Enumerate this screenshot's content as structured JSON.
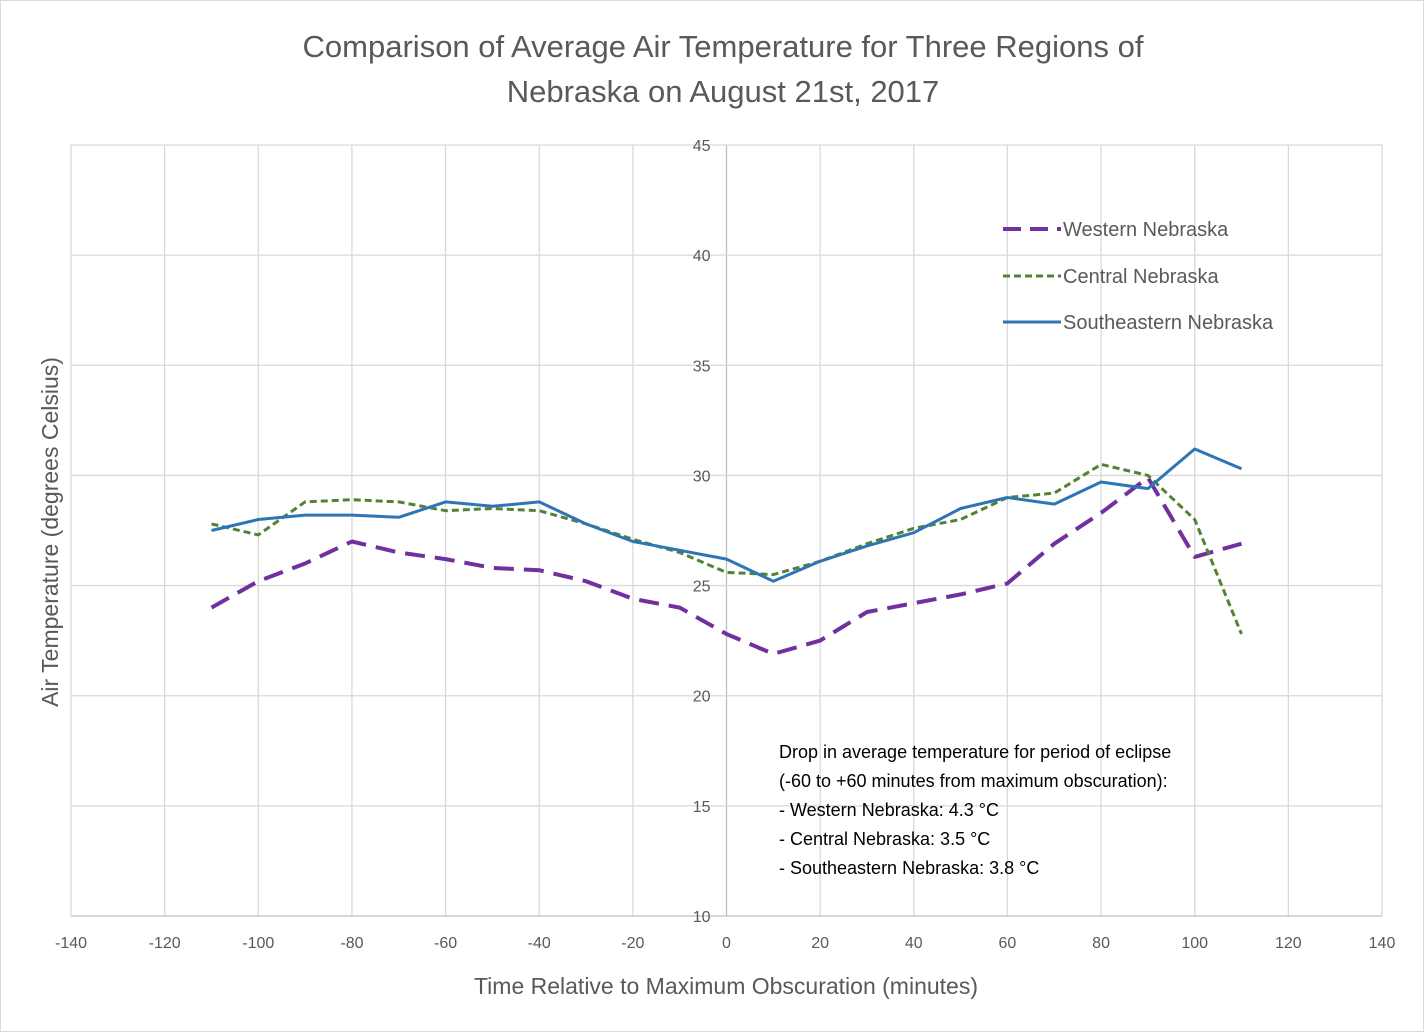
{
  "chart_data": {
    "type": "line",
    "title_lines": [
      "Comparison of Average Air Temperature for Three Regions of",
      "Nebraska on August 21st, 2017"
    ],
    "xlabel": "Time Relative to Maximum Obscuration  (minutes)",
    "ylabel": "Air Temperature  (degrees Celsius)",
    "xlim": [
      -140,
      140
    ],
    "ylim": [
      10,
      45
    ],
    "x_ticks": [
      "-140",
      "-120",
      "-100",
      "-80",
      "-60",
      "-40",
      "-20",
      "0",
      "20",
      "40",
      "60",
      "80",
      "100",
      "120",
      "140"
    ],
    "y_ticks": [
      "10",
      "15",
      "20",
      "25",
      "30",
      "35",
      "40",
      "45"
    ],
    "grid": "vertical and horizontal",
    "legend_position": "top-right",
    "x": [
      -110,
      -100,
      -90,
      -80,
      -70,
      -60,
      -50,
      -40,
      -30,
      -20,
      -10,
      0,
      10,
      20,
      30,
      40,
      50,
      60,
      70,
      80,
      90,
      100,
      110
    ],
    "series": [
      {
        "name": "Western Nebraska",
        "color": "#7030a0",
        "style": "long-dash",
        "values": [
          24.0,
          25.2,
          26.0,
          27.0,
          26.5,
          26.2,
          25.8,
          25.7,
          25.2,
          24.4,
          24.0,
          22.8,
          21.9,
          22.5,
          23.8,
          24.2,
          24.6,
          25.1,
          26.9,
          28.3,
          29.9,
          26.3,
          26.9
        ]
      },
      {
        "name": "Central Nebraska",
        "color": "#548235",
        "style": "short-dash",
        "values": [
          27.8,
          27.3,
          28.8,
          28.9,
          28.8,
          28.4,
          28.5,
          28.4,
          27.8,
          27.1,
          26.5,
          25.6,
          25.5,
          26.1,
          26.9,
          27.6,
          28.0,
          29.0,
          29.2,
          30.5,
          30.0,
          28.0,
          22.8
        ]
      },
      {
        "name": "Southeastern Nebraska",
        "color": "#2e75b6",
        "style": "solid",
        "values": [
          27.5,
          28.0,
          28.2,
          28.2,
          28.1,
          28.8,
          28.6,
          28.8,
          27.8,
          27.0,
          26.6,
          26.2,
          25.2,
          26.1,
          26.8,
          27.4,
          28.5,
          29.0,
          28.7,
          29.7,
          29.4,
          31.2,
          30.3
        ]
      }
    ],
    "annotation_lines": [
      "Drop in average temperature for period of eclipse",
      "(-60 to +60 minutes from maximum obscuration):",
      "- Western Nebraska: 4.3 °C",
      "- Central Nebraska: 3.5 °C",
      "- Southeastern Nebraska: 3.8 °C"
    ],
    "colors": {
      "grid": "#d9d9d9",
      "text": "#595959",
      "annotation": "#000000"
    }
  }
}
